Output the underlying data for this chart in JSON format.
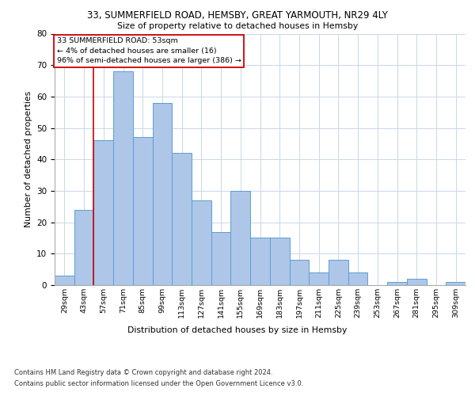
{
  "title_line1": "33, SUMMERFIELD ROAD, HEMSBY, GREAT YARMOUTH, NR29 4LY",
  "title_line2": "Size of property relative to detached houses in Hemsby",
  "xlabel": "Distribution of detached houses by size in Hemsby",
  "ylabel": "Number of detached properties",
  "categories": [
    "29sqm",
    "43sqm",
    "57sqm",
    "71sqm",
    "85sqm",
    "99sqm",
    "113sqm",
    "127sqm",
    "141sqm",
    "155sqm",
    "169sqm",
    "183sqm",
    "197sqm",
    "211sqm",
    "225sqm",
    "239sqm",
    "253sqm",
    "267sqm",
    "281sqm",
    "295sqm",
    "309sqm"
  ],
  "values": [
    3,
    24,
    46,
    68,
    47,
    58,
    42,
    27,
    17,
    30,
    15,
    15,
    8,
    4,
    8,
    4,
    0,
    1,
    2,
    0,
    1
  ],
  "bar_color": "#aec6e8",
  "bar_edge_color": "#5a9fd4",
  "annotation_text_line1": "33 SUMMERFIELD ROAD: 53sqm",
  "annotation_text_line2": "← 4% of detached houses are smaller (16)",
  "annotation_text_line3": "96% of semi-detached houses are larger (386) →",
  "vline_position": 1.5,
  "vline_color": "#cc0000",
  "ylim": [
    0,
    80
  ],
  "yticks": [
    0,
    10,
    20,
    30,
    40,
    50,
    60,
    70,
    80
  ],
  "footnote_line1": "Contains HM Land Registry data © Crown copyright and database right 2024.",
  "footnote_line2": "Contains public sector information licensed under the Open Government Licence v3.0.",
  "background_color": "#ffffff",
  "grid_color": "#c8d8e8"
}
